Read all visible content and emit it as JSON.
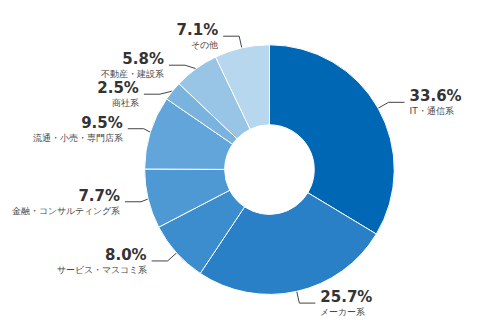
{
  "chart_data": {
    "type": "pie",
    "categories": [
      "IT・通信系",
      "メーカー系",
      "サービス・マスコミ系",
      "金融・コンサルティング系",
      "流通・小売・専門店系",
      "商社系",
      "不動産・建設系",
      "その他"
    ],
    "values": [
      33.6,
      25.7,
      8.0,
      7.7,
      9.5,
      2.5,
      5.8,
      7.1
    ],
    "value_labels": [
      "33.6%",
      "25.7%",
      "8.0%",
      "7.7%",
      "9.5%",
      "2.5%",
      "5.8%",
      "7.1%"
    ],
    "colors": [
      "#0067b5",
      "#2a80c6",
      "#3b8dce",
      "#4e99d4",
      "#62a5da",
      "#7bb3df",
      "#98c4e6",
      "#b7d7ee"
    ],
    "data_labels": true
  }
}
